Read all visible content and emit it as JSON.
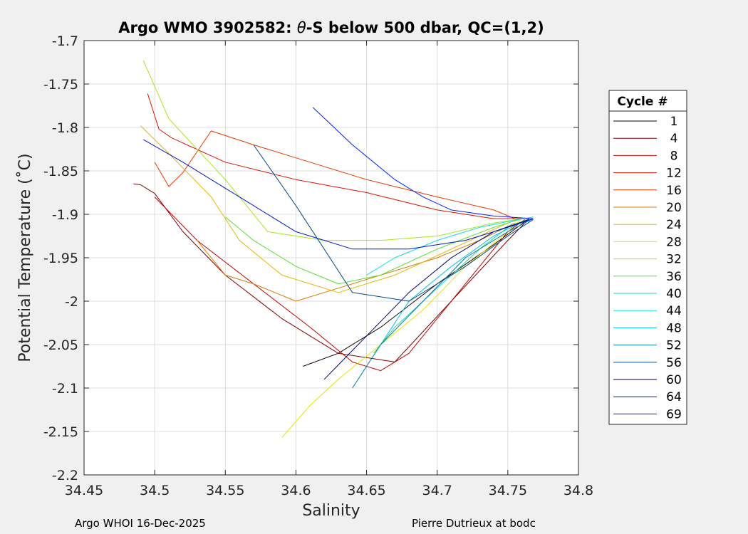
{
  "chart_data": {
    "type": "line",
    "title_prefix": "Argo WMO 3902582: ",
    "title_theta": "θ",
    "title_suffix": "-S below 500 dbar,  QC=(1,2)",
    "xlabel": "Salinity",
    "ylabel": "Potential Temperature (˚C)",
    "xlim": [
      34.45,
      34.8
    ],
    "ylim": [
      -2.2,
      -1.7
    ],
    "x_ticks": [
      34.45,
      34.5,
      34.55,
      34.6,
      34.65,
      34.7,
      34.75,
      34.8
    ],
    "x_tick_labels": [
      "34.45",
      "34.5",
      "34.55",
      "34.6",
      "34.65",
      "34.7",
      "34.75",
      "34.8"
    ],
    "y_ticks": [
      -1.7,
      -1.75,
      -1.8,
      -1.85,
      -1.9,
      -1.95,
      -2,
      -2.05,
      -2.1,
      -2.15,
      -2.2
    ],
    "y_tick_labels": [
      "-1.7",
      "-1.75",
      "-1.8",
      "-1.85",
      "-1.9",
      "-1.95",
      "-2",
      "-2.05",
      "-2.1",
      "-2.15",
      "-2.2"
    ],
    "grid": true,
    "legend": {
      "title": "Cycle #",
      "placement": "right",
      "entries": [
        {
          "label": "1",
          "color": "#1a0000"
        },
        {
          "label": "4",
          "color": "#800000"
        },
        {
          "label": "8",
          "color": "#c00000"
        },
        {
          "label": "12",
          "color": "#e01000"
        },
        {
          "label": "16",
          "color": "#e83a00"
        },
        {
          "label": "20",
          "color": "#d97a00"
        },
        {
          "label": "24",
          "color": "#e0b800"
        },
        {
          "label": "28",
          "color": "#e6e600"
        },
        {
          "label": "32",
          "color": "#a8e61a"
        },
        {
          "label": "36",
          "color": "#55dd33"
        },
        {
          "label": "40",
          "color": "#22ddaa"
        },
        {
          "label": "44",
          "color": "#11dddd"
        },
        {
          "label": "48",
          "color": "#00c0e6"
        },
        {
          "label": "52",
          "color": "#0080a0"
        },
        {
          "label": "56",
          "color": "#004a8a"
        },
        {
          "label": "60",
          "color": "#000060"
        },
        {
          "label": "64",
          "color": "#0018c8"
        },
        {
          "label": "69",
          "color": "#0020ff"
        }
      ]
    },
    "series": [
      {
        "name": "1",
        "x": [
          34.605,
          34.63,
          34.66,
          34.7,
          34.74,
          34.765
        ],
        "y": [
          -2.075,
          -2.06,
          -2.03,
          -1.98,
          -1.935,
          -1.905
        ]
      },
      {
        "name": "4",
        "x": [
          34.485,
          34.49,
          34.5,
          34.52,
          34.55,
          34.59,
          34.63,
          34.67,
          34.71,
          34.75,
          34.765
        ],
        "y": [
          -1.865,
          -1.866,
          -1.876,
          -1.92,
          -1.97,
          -2.02,
          -2.06,
          -2.07,
          -2.0,
          -1.93,
          -1.905
        ]
      },
      {
        "name": "8",
        "x": [
          34.5,
          34.53,
          34.57,
          34.61,
          34.64,
          34.66,
          34.68,
          34.72,
          34.75,
          34.762
        ],
        "y": [
          -1.88,
          -1.93,
          -1.98,
          -2.03,
          -2.07,
          -2.08,
          -2.06,
          -1.98,
          -1.92,
          -1.906
        ]
      },
      {
        "name": "12",
        "x": [
          34.495,
          34.503,
          34.512,
          34.55,
          34.6,
          34.65,
          34.7,
          34.74,
          34.76
        ],
        "y": [
          -1.761,
          -1.802,
          -1.812,
          -1.84,
          -1.86,
          -1.875,
          -1.895,
          -1.905,
          -1.905
        ]
      },
      {
        "name": "16",
        "x": [
          34.5,
          34.51,
          34.52,
          34.54,
          34.57,
          34.61,
          34.65,
          34.7,
          34.74,
          34.755
        ],
        "y": [
          -1.84,
          -1.868,
          -1.852,
          -1.804,
          -1.82,
          -1.84,
          -1.86,
          -1.88,
          -1.895,
          -1.905
        ]
      },
      {
        "name": "20",
        "x": [
          34.53,
          34.55,
          34.57,
          34.6,
          34.62,
          34.66,
          34.7,
          34.73,
          34.755
        ],
        "y": [
          -1.93,
          -1.97,
          -1.98,
          -2.0,
          -1.99,
          -1.97,
          -1.95,
          -1.93,
          -1.91
        ]
      },
      {
        "name": "24",
        "x": [
          34.49,
          34.51,
          34.54,
          34.56,
          34.59,
          34.63,
          34.67,
          34.71,
          34.75
        ],
        "y": [
          -1.798,
          -1.83,
          -1.88,
          -1.93,
          -1.97,
          -1.99,
          -1.97,
          -1.94,
          -1.91
        ]
      },
      {
        "name": "28",
        "x": [
          34.59,
          34.61,
          34.63,
          34.66,
          34.69,
          34.72,
          34.75,
          34.76
        ],
        "y": [
          -2.157,
          -2.12,
          -2.09,
          -2.05,
          -2.01,
          -1.96,
          -1.92,
          -1.905
        ]
      },
      {
        "name": "32",
        "x": [
          34.492,
          34.51,
          34.55,
          34.58,
          34.62,
          34.66,
          34.7,
          34.74,
          34.76
        ],
        "y": [
          -1.723,
          -1.79,
          -1.86,
          -1.92,
          -1.93,
          -1.93,
          -1.925,
          -1.91,
          -1.905
        ]
      },
      {
        "name": "36",
        "x": [
          34.55,
          34.57,
          34.6,
          34.63,
          34.66,
          34.7,
          34.74,
          34.76
        ],
        "y": [
          -1.903,
          -1.93,
          -1.96,
          -1.98,
          -1.97,
          -1.94,
          -1.915,
          -1.905
        ]
      },
      {
        "name": "40",
        "x": [
          34.655,
          34.67,
          34.69,
          34.71,
          34.73,
          34.75,
          34.765
        ],
        "y": [
          -2.06,
          -2.03,
          -2.0,
          -1.97,
          -1.94,
          -1.915,
          -1.905
        ]
      },
      {
        "name": "44",
        "x": [
          34.65,
          34.67,
          34.7,
          34.73,
          34.76,
          34.768
        ],
        "y": [
          -1.97,
          -1.95,
          -1.93,
          -1.915,
          -1.905,
          -1.903
        ]
      },
      {
        "name": "48",
        "x": [
          34.66,
          34.68,
          34.71,
          34.74,
          34.765
        ],
        "y": [
          -2.05,
          -2.0,
          -1.96,
          -1.925,
          -1.905
        ]
      },
      {
        "name": "52",
        "x": [
          34.64,
          34.66,
          34.69,
          34.72,
          34.75,
          34.768
        ],
        "y": [
          -2.1,
          -2.05,
          -2.0,
          -1.95,
          -1.92,
          -1.905
        ]
      },
      {
        "name": "56",
        "x": [
          34.57,
          34.6,
          34.64,
          34.68,
          34.72,
          34.75,
          34.768
        ],
        "y": [
          -1.82,
          -1.89,
          -1.99,
          -2.0,
          -1.96,
          -1.925,
          -1.906
        ]
      },
      {
        "name": "60",
        "x": [
          34.62,
          34.65,
          34.68,
          34.71,
          34.74,
          34.765
        ],
        "y": [
          -2.09,
          -2.04,
          -1.99,
          -1.95,
          -1.92,
          -1.906
        ]
      },
      {
        "name": "64",
        "x": [
          34.492,
          34.52,
          34.56,
          34.6,
          34.64,
          34.68,
          34.72,
          34.75,
          34.768
        ],
        "y": [
          -1.814,
          -1.84,
          -1.88,
          -1.92,
          -1.94,
          -1.94,
          -1.93,
          -1.915,
          -1.905
        ]
      },
      {
        "name": "69",
        "x": [
          34.612,
          34.64,
          34.67,
          34.69,
          34.71,
          34.74,
          34.768
        ],
        "y": [
          -1.777,
          -1.82,
          -1.86,
          -1.88,
          -1.895,
          -1.902,
          -1.905
        ]
      }
    ],
    "footer_left": "Argo WHOI 16-Dec-2025",
    "footer_right": "Pierre Dutrieux at bodc"
  }
}
